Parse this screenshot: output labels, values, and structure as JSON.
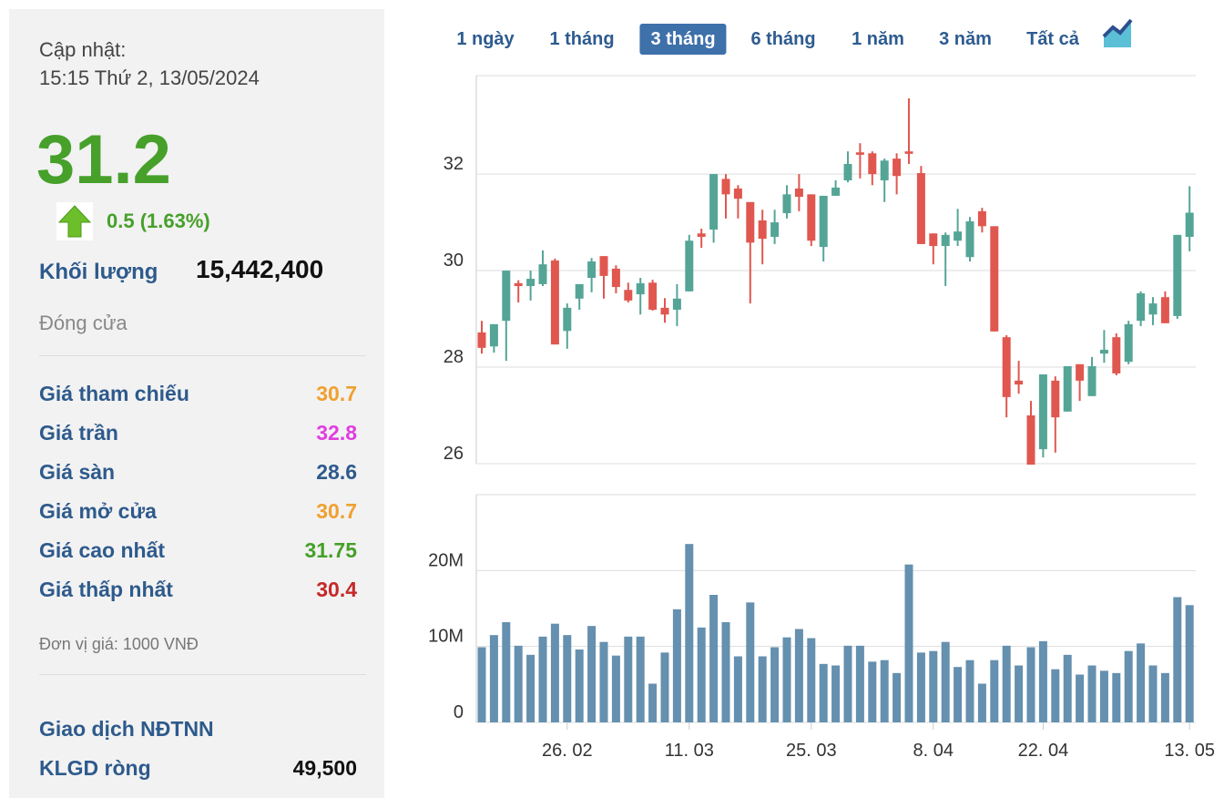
{
  "panel": {
    "update_label": "Cập nhật:",
    "update_time": "15:15 Thứ 2, 13/05/2024",
    "price": "31.2",
    "change": "0.5 (1.63%)",
    "volume_label": "Khối lượng",
    "volume": "15,442,400",
    "status": "Đóng cửa",
    "rows": [
      {
        "label": "Giá tham chiếu",
        "value": "30.7",
        "color": "#f0a030"
      },
      {
        "label": "Giá trần",
        "value": "32.8",
        "color": "#e03ee0"
      },
      {
        "label": "Giá sàn",
        "value": "28.6",
        "color": "#2e5a8c"
      },
      {
        "label": "Giá mở cửa",
        "value": "30.7",
        "color": "#f0a030"
      },
      {
        "label": "Giá cao nhất",
        "value": "31.75",
        "color": "#46a02a"
      },
      {
        "label": "Giá thấp nhất",
        "value": "30.4",
        "color": "#c62828"
      }
    ],
    "unit_note": "Đơn vị giá: 1000 VNĐ",
    "foreign_title": "Giao dịch NĐTNN",
    "net_label": "KLGD ròng",
    "net_value": "49,500"
  },
  "range_buttons": {
    "labels": [
      "1 ngày",
      "1 tháng",
      "3 tháng",
      "6 tháng",
      "1 năm",
      "3 năm",
      "Tất cả"
    ],
    "active": 2
  },
  "chart_data": [
    {
      "type": "candlestick",
      "up_color": "#55a597",
      "down_color": "#e0574f",
      "grid": true,
      "ylim": [
        26,
        34.04
      ],
      "yticks": [
        26,
        28,
        30,
        32
      ],
      "open": [
        28.72,
        28.43,
        28.96,
        29.74,
        29.68,
        29.72,
        30.21,
        28.75,
        29.42,
        29.85,
        30.3,
        30.04,
        29.6,
        29.51,
        29.75,
        29.23,
        29.19,
        29.57,
        30.77,
        30.85,
        31.9,
        31.7,
        31.42,
        31.04,
        30.7,
        31.19,
        31.7,
        31.58,
        30.49,
        31.55,
        31.87,
        32.45,
        32.43,
        31.87,
        32.32,
        32.47,
        32.02,
        30.77,
        30.51,
        30.62,
        30.28,
        31.23,
        30.92,
        28.62,
        27.72,
        27.0,
        26.3,
        27.72,
        27.08,
        28.06,
        27.4,
        28.28,
        28.62,
        28.11,
        28.96,
        29.09,
        29.45,
        29.06,
        30.7
      ],
      "high": [
        28.96,
        28.89,
        30.0,
        29.8,
        30.0,
        30.42,
        30.25,
        29.32,
        29.72,
        30.26,
        30.3,
        30.11,
        29.75,
        29.85,
        29.81,
        29.43,
        29.72,
        30.74,
        30.87,
        32.0,
        32.0,
        31.77,
        31.42,
        31.26,
        31.26,
        31.77,
        32.0,
        31.58,
        31.55,
        31.87,
        32.47,
        32.64,
        32.47,
        32.32,
        32.43,
        33.57,
        32.17,
        30.77,
        30.79,
        31.28,
        31.11,
        31.3,
        30.92,
        28.66,
        28.13,
        27.3,
        27.85,
        27.81,
        28.02,
        28.06,
        28.21,
        28.77,
        28.7,
        28.96,
        29.57,
        29.45,
        29.57,
        30.74,
        31.75
      ],
      "low": [
        28.28,
        28.3,
        28.13,
        29.34,
        29.38,
        29.68,
        28.47,
        28.38,
        29.19,
        29.55,
        29.42,
        29.53,
        29.34,
        29.09,
        29.17,
        28.92,
        28.85,
        29.57,
        30.47,
        30.58,
        31.08,
        31.08,
        29.32,
        30.13,
        30.55,
        31.08,
        31.23,
        30.51,
        30.19,
        31.55,
        31.83,
        31.91,
        31.77,
        31.42,
        31.58,
        32.21,
        30.55,
        30.13,
        29.68,
        30.51,
        30.19,
        30.79,
        28.74,
        26.96,
        27.45,
        25.98,
        26.13,
        26.23,
        27.08,
        27.3,
        27.4,
        28.09,
        27.83,
        28.06,
        28.85,
        28.87,
        28.91,
        29.0,
        30.4
      ],
      "close": [
        28.4,
        28.89,
        30.0,
        29.68,
        29.83,
        30.13,
        28.47,
        29.23,
        29.72,
        30.19,
        29.89,
        29.66,
        29.38,
        29.74,
        29.19,
        29.09,
        29.42,
        30.62,
        30.7,
        32.0,
        31.58,
        31.49,
        30.58,
        30.66,
        31.0,
        31.58,
        31.53,
        30.62,
        31.55,
        31.72,
        32.21,
        32.4,
        32.0,
        32.28,
        31.96,
        32.42,
        30.55,
        30.51,
        30.74,
        30.81,
        31.02,
        30.92,
        28.74,
        27.38,
        27.64,
        25.98,
        27.85,
        26.96,
        28.02,
        27.72,
        28.02,
        28.36,
        27.87,
        28.89,
        29.53,
        29.32,
        28.91,
        30.74,
        31.2
      ]
    },
    {
      "type": "bar",
      "color": "#6590af",
      "grid": true,
      "ylim": [
        0,
        30000000
      ],
      "yticks": [
        0,
        {
          "value": 10000000,
          "label": "10M"
        },
        {
          "value": 20000000,
          "label": "20M"
        }
      ],
      "categories": [
        null,
        null,
        null,
        null,
        null,
        null,
        null,
        "26. 02",
        null,
        null,
        null,
        null,
        null,
        null,
        null,
        null,
        null,
        "11. 03",
        null,
        null,
        null,
        null,
        null,
        null,
        null,
        null,
        null,
        "25. 03",
        null,
        null,
        null,
        null,
        null,
        null,
        null,
        null,
        null,
        "8. 04",
        null,
        null,
        null,
        null,
        null,
        null,
        null,
        null,
        "22. 04",
        null,
        null,
        null,
        null,
        null,
        null,
        null,
        null,
        null,
        null,
        null,
        "13. 05"
      ],
      "values": [
        9900000,
        11500000,
        13200000,
        10100000,
        8900000,
        11300000,
        13000000,
        11500000,
        9600000,
        12700000,
        10600000,
        8800000,
        11300000,
        11300000,
        5100000,
        9200000,
        14900000,
        23500000,
        12500000,
        16800000,
        13200000,
        8700000,
        15800000,
        8700000,
        9900000,
        11200000,
        12300000,
        11100000,
        7700000,
        7500000,
        10100000,
        10100000,
        8000000,
        8200000,
        6500000,
        20800000,
        9200000,
        9400000,
        10600000,
        7300000,
        8200000,
        5100000,
        8200000,
        10100000,
        7500000,
        9900000,
        10700000,
        7000000,
        8900000,
        6300000,
        7500000,
        6800000,
        6500000,
        9400000,
        10400000,
        7500000,
        6500000,
        16500000,
        15442400
      ]
    }
  ]
}
